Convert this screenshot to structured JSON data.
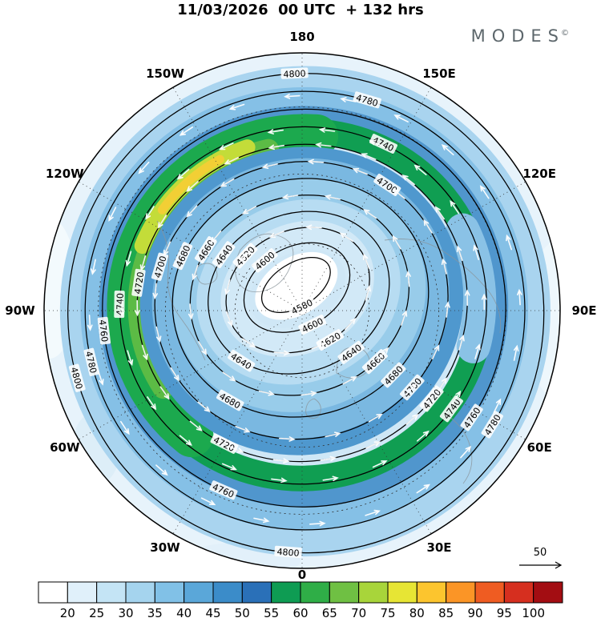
{
  "header": {
    "title": "11/03/2026  00 UTC  + 132 hrs",
    "brand": "MODES",
    "brand_mark": "©"
  },
  "chart_data": {
    "type": "heatmap",
    "subtype": "polar-stereographic contour map",
    "title": "11/03/2026 00 UTC + 132 hrs",
    "description": "Northern Hemisphere geopotential height contours (m) around a polar vortex with wind-speed shading and white streamline arrows",
    "projection": "north polar stereographic",
    "longitude_labels": [
      "180",
      "150E",
      "120E",
      "90E",
      "60E",
      "30E",
      "0",
      "30W",
      "60W",
      "90W",
      "120W",
      "150W"
    ],
    "contour_levels": [
      4580,
      4600,
      4620,
      4640,
      4660,
      4680,
      4700,
      4720,
      4740,
      4760,
      4780,
      4800
    ],
    "contour_interval": 20,
    "contour_min": 4580,
    "contour_max": 4800,
    "vortex_center_value": 4580,
    "shading": {
      "variable": "wind speed",
      "legend_position": "bottom",
      "ticks": [
        20,
        25,
        30,
        35,
        40,
        45,
        50,
        55,
        60,
        65,
        70,
        75,
        80,
        85,
        90,
        95,
        100
      ],
      "colors": [
        "#ffffff",
        "#e0f0fa",
        "#c4e4f5",
        "#a5d4ee",
        "#81c1e7",
        "#5aa7d9",
        "#3b8cc9",
        "#2a70b8",
        "#0e9c53",
        "#2fae47",
        "#6fc043",
        "#a8d53a",
        "#e7e534",
        "#fcc52e",
        "#fb9526",
        "#ef5c22",
        "#d62f1f",
        "#a30d12"
      ]
    },
    "wind_reference_label": "50",
    "arrow_color": "#ffffff",
    "contour_color": "#000000"
  }
}
